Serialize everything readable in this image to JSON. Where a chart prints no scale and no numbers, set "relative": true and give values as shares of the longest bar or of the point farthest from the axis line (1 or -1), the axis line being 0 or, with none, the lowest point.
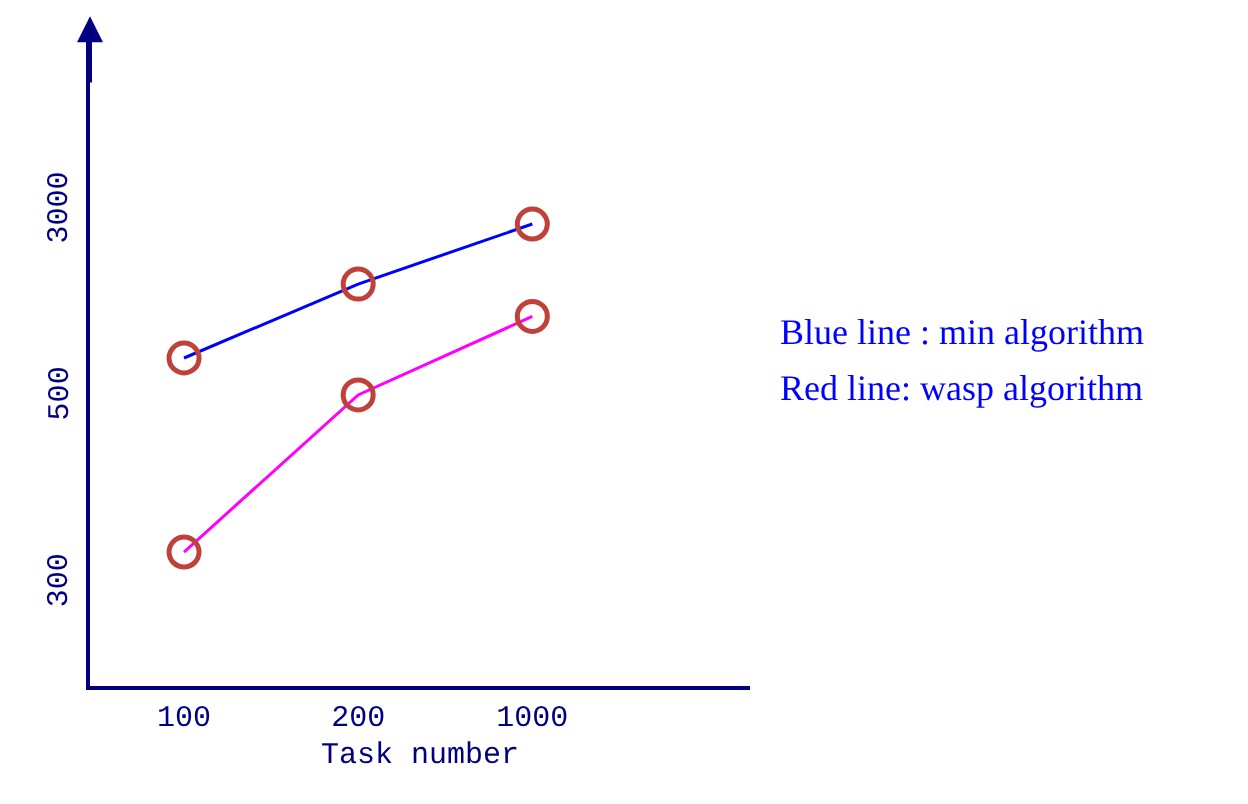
{
  "chart_data": {
    "type": "line",
    "xlabel": "Task number",
    "categories": [
      "100",
      "200",
      "1000"
    ],
    "relative": true,
    "series": [
      {
        "color": "#0000ff",
        "values": [
          0.71,
          0.87,
          1.0
        ]
      },
      {
        "color": "#ff00ff",
        "values": [
          0.29,
          0.63,
          0.8
        ]
      }
    ],
    "marker": "circle",
    "annotations": [
      "300",
      "500",
      "3000",
      "Blue line : min algorithm",
      "Red line: wasp algorithm"
    ]
  }
}
